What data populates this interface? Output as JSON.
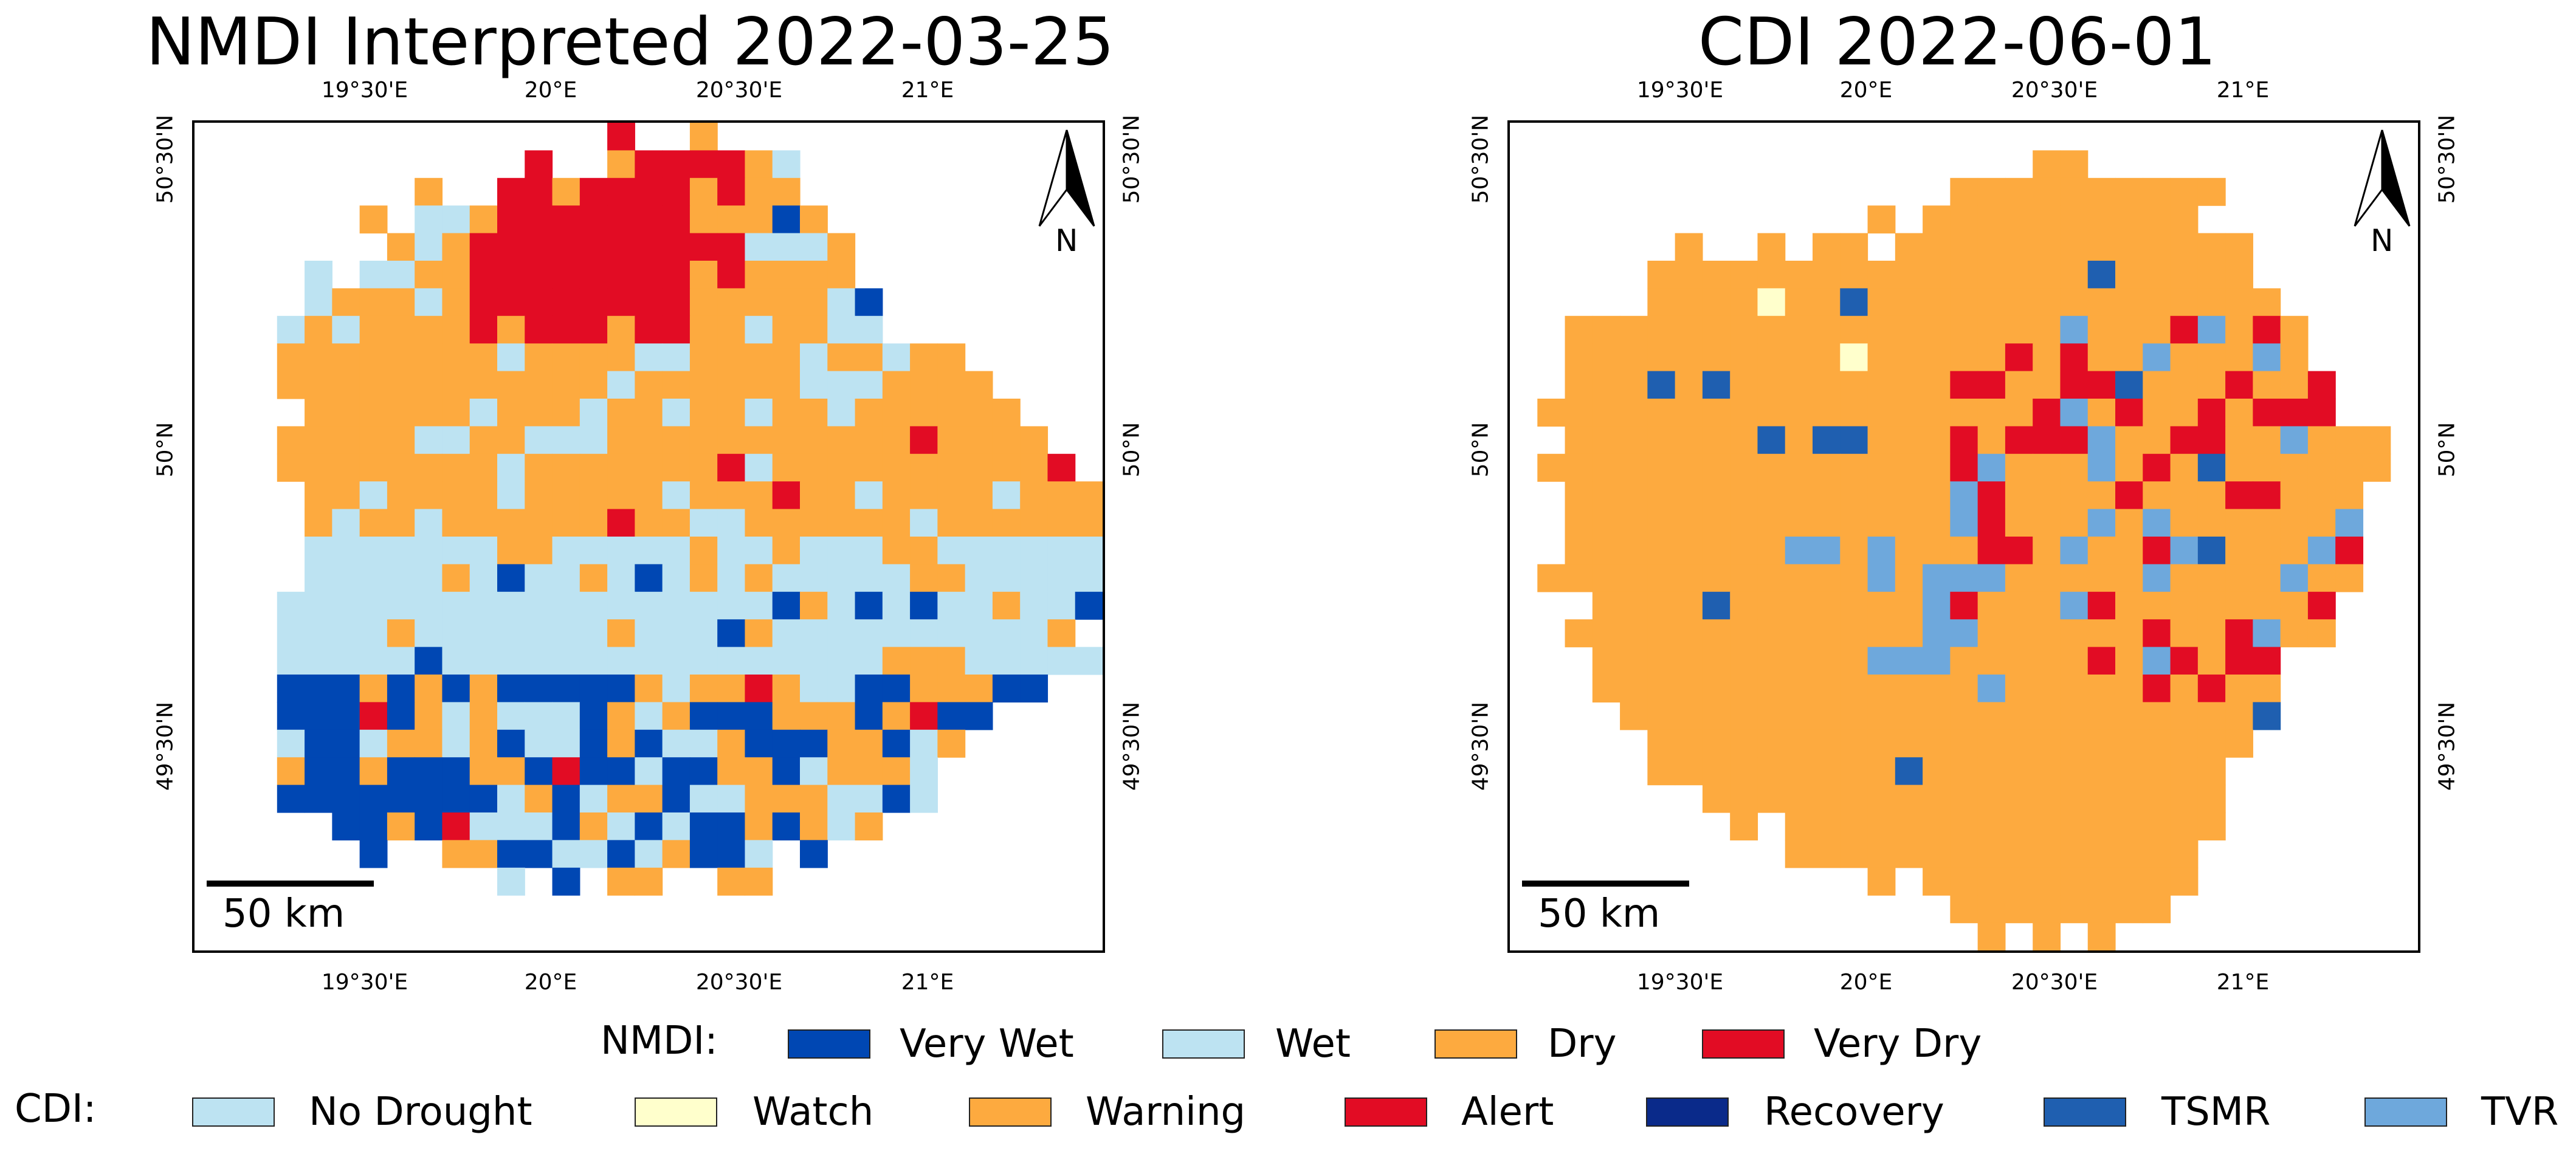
{
  "panels": [
    {
      "title": "NMDI Interpreted 2022-03-25",
      "scale_label": "50 km",
      "north_label": "N",
      "top_ticks": [
        "19°30'E",
        "20°E",
        "20°30'E",
        "21°E"
      ],
      "bottom_ticks": [
        "19°30'E",
        "20°E",
        "20°30'E",
        "21°E"
      ],
      "left_ticks": [
        "50°30'N",
        "50°N",
        "49°30'N"
      ],
      "right_ticks": [
        "50°30'N",
        "50°N",
        "49°30'N"
      ]
    },
    {
      "title": "CDI 2022-06-01",
      "scale_label": "50 km",
      "north_label": "N",
      "top_ticks": [
        "19°30'E",
        "20°E",
        "20°30'E",
        "21°E"
      ],
      "bottom_ticks": [
        "19°30'E",
        "20°E",
        "20°30'E",
        "21°E"
      ],
      "left_ticks": [
        "50°30'N",
        "50°N",
        "49°30'N"
      ],
      "right_ticks": [
        "50°30'N",
        "50°N",
        "49°30'N"
      ]
    }
  ],
  "legend": {
    "nmdi": {
      "title": "NMDI:",
      "items": [
        {
          "label": "Very Wet",
          "color": "#0047b3"
        },
        {
          "label": "Wet",
          "color": "#bde3f2"
        },
        {
          "label": "Dry",
          "color": "#fdaa3f"
        },
        {
          "label": "Very Dry",
          "color": "#e20c24"
        }
      ]
    },
    "cdi": {
      "title": "CDI:",
      "items": [
        {
          "label": "No Drought",
          "color": "#bde3f2"
        },
        {
          "label": "Watch",
          "color": "#ffffcc"
        },
        {
          "label": "Warning",
          "color": "#fdaa3f"
        },
        {
          "label": "Alert",
          "color": "#e20c24"
        },
        {
          "label": "Recovery",
          "color": "#0a2a8a"
        },
        {
          "label": "TSMR",
          "color": "#1f5fb0"
        },
        {
          "label": "TVR",
          "color": "#6ea8dc"
        }
      ]
    }
  }
}
